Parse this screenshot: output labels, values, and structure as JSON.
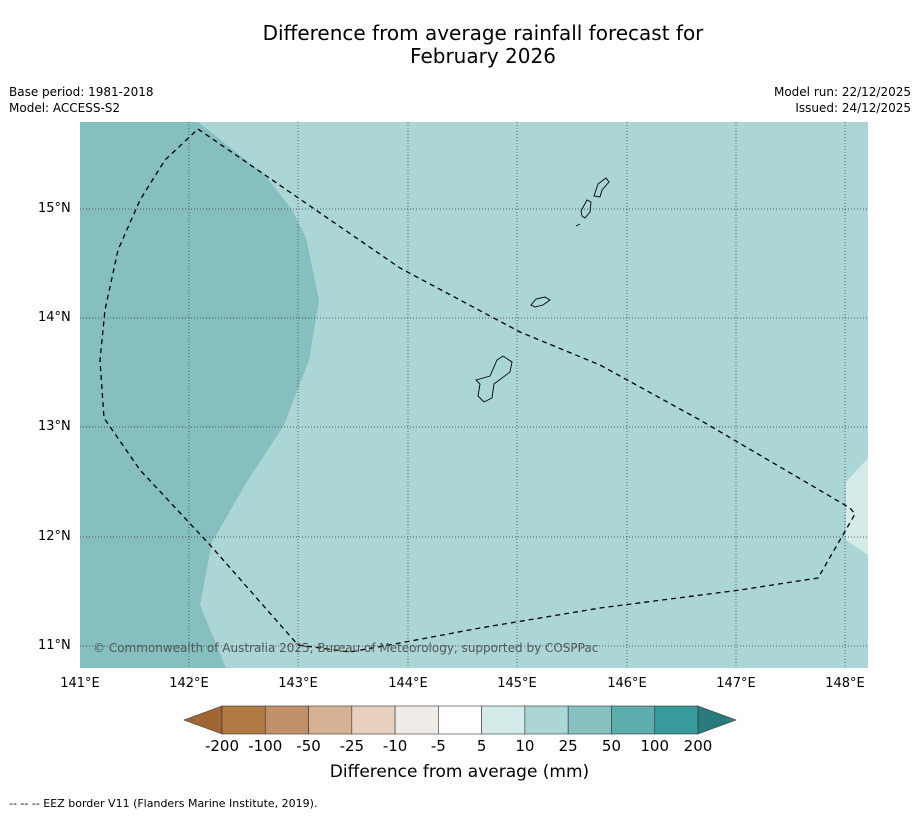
{
  "title_line1": "Difference from average rainfall forecast for",
  "title_line2": "February 2026",
  "base_period": "Base period: 1981-2018",
  "model": "Model: ACCESS-S2",
  "model_run": "Model run: 22/12/2025",
  "issued": "Issued: 24/12/2025",
  "lat_labels": [
    "15°N",
    "14°N",
    "13°N",
    "12°N",
    "11°N"
  ],
  "lon_labels": [
    "141°E",
    "142°E",
    "143°E",
    "144°E",
    "145°E",
    "146°E",
    "147°E",
    "148°E"
  ],
  "copyright": "© Commonwealth of Australia 2025, Bureau of Meteorology, supported by COSPPac",
  "colorbar": {
    "ticks": [
      "-200",
      "-100",
      "-50",
      "-25",
      "-10",
      "-5",
      "5",
      "10",
      "25",
      "50",
      "100",
      "200"
    ],
    "colors": [
      "#a06636",
      "#b17a42",
      "#c19069",
      "#d5b293",
      "#e7d0bd",
      "#f0ebe7",
      "#ffffff",
      "#d5ebea",
      "#acd5d5",
      "#87c0c0",
      "#5dadad",
      "#379b9b",
      "#2a7b7b"
    ],
    "title": "Difference from average (mm)"
  },
  "legend_footer": "--  --  -- EEZ border V11 (Flanders Marine Institute, 2019).",
  "map_colors": {
    "class_10_25": "#acd5d5",
    "class_25_50": "#85bfbf",
    "class_5_10": "#d5ebea"
  }
}
